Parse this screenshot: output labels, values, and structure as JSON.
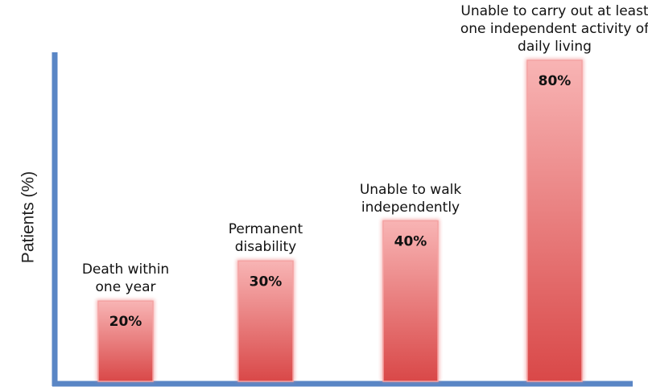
{
  "chart_data": {
    "type": "bar",
    "y_label": "Patients (%)",
    "categories": [
      "Death within one year",
      "Permanent disability",
      "Unable to walk independently",
      "Unable to carry out at least one independent activity of daily living"
    ],
    "values": [
      20,
      30,
      40,
      80
    ],
    "value_labels": [
      "20%",
      "30%",
      "40%",
      "80%"
    ],
    "color": "#d94848",
    "ylim": [
      0,
      82
    ]
  }
}
